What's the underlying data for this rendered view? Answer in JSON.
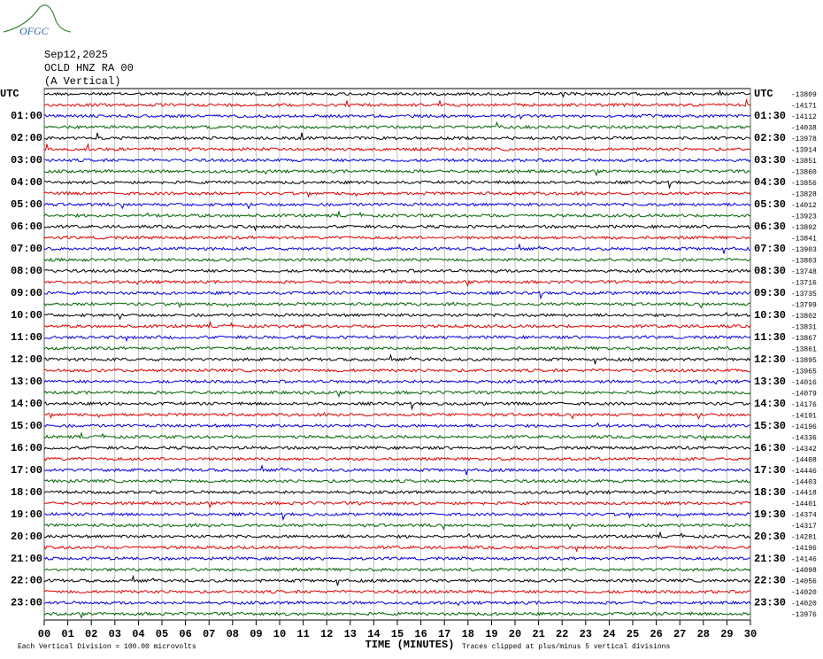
{
  "header": {
    "logo": "OFGC",
    "lines": [
      "Sep12,2025",
      "OCLD HNZ RA 00",
      "(A Vertical)"
    ]
  },
  "left_labels": [
    "UTC",
    "01:00",
    "02:00",
    "03:00",
    "04:00",
    "05:00",
    "06:00",
    "07:00",
    "08:00",
    "09:00",
    "10:00",
    "11:00",
    "12:00",
    "13:00",
    "14:00",
    "15:00",
    "16:00",
    "17:00",
    "18:00",
    "19:00",
    "20:00",
    "21:00",
    "22:00",
    "23:00"
  ],
  "right_labels": [
    "UTC",
    "01:30",
    "02:30",
    "03:30",
    "04:30",
    "05:30",
    "06:30",
    "07:30",
    "08:30",
    "09:30",
    "10:30",
    "11:30",
    "12:30",
    "13:30",
    "14:30",
    "15:30",
    "16:30",
    "17:30",
    "18:30",
    "19:30",
    "20:30",
    "21:30",
    "22:30",
    "23:30"
  ],
  "offsets": [
    -13809,
    -14171,
    -14112,
    -14038,
    -13978,
    -13914,
    -13851,
    -13860,
    -13856,
    -13828,
    -14012,
    -13923,
    -13892,
    -13841,
    -13903,
    -13803,
    -13748,
    -13716,
    -13735,
    -13799,
    -13802,
    -13831,
    -13867,
    -13861,
    -13895,
    -13965,
    -14016,
    -14079,
    -14176,
    -14191,
    -14196,
    -14336,
    -14342,
    -14408,
    -14446,
    -14403,
    -14418,
    -14401,
    -14374,
    -14317,
    -14281,
    -14196,
    -14146,
    -14098,
    -14056,
    -14020,
    -14020,
    -13976
  ],
  "x_ticks": [
    "00",
    "01",
    "02",
    "03",
    "04",
    "05",
    "06",
    "07",
    "08",
    "09",
    "10",
    "11",
    "12",
    "13",
    "14",
    "15",
    "16",
    "17",
    "18",
    "19",
    "20",
    "21",
    "22",
    "23",
    "24",
    "25",
    "26",
    "27",
    "28",
    "29",
    "30"
  ],
  "x_label": "TIME (MINUTES)",
  "footer": {
    "left": "Each Vertical Division =  100.00 microvolts",
    "right": "Traces clipped at plus/minus 5 vertical divisions"
  },
  "trace_colors": [
    "#000000",
    "#e00000",
    "#0000e0",
    "#006400"
  ]
}
